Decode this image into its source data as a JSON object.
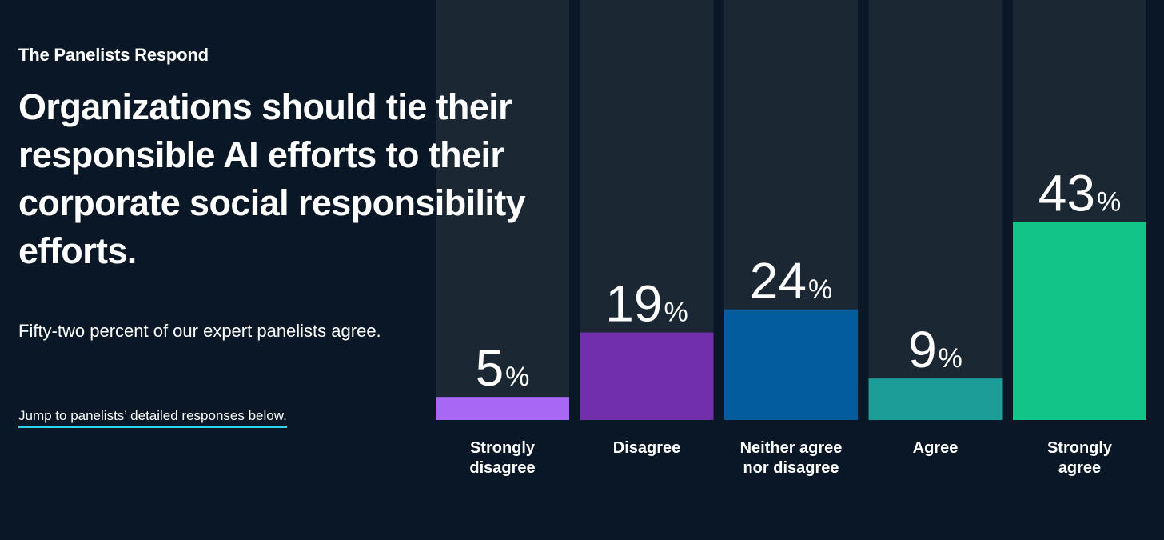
{
  "header": {
    "kicker": "The Panelists Respond",
    "headline": "Organizations should tie their responsible AI efforts to their corporate social responsibility efforts.",
    "summary": "Fifty-two percent of our expert panelists agree.",
    "jump_link": "Jump to panelists’ detailed responses below."
  },
  "colors": {
    "background": "#091726",
    "track": "#1b2733",
    "link_underline": "#2fd4e8"
  },
  "chart_data": {
    "type": "bar",
    "categories": [
      [
        "Strongly",
        "disagree"
      ],
      [
        "Disagree"
      ],
      [
        "Neither agree",
        "nor disagree"
      ],
      [
        "Agree"
      ],
      [
        "Strongly",
        "agree"
      ]
    ],
    "values": [
      5,
      19,
      24,
      9,
      43
    ],
    "value_suffix": "%",
    "colors": [
      "#a968f4",
      "#722fad",
      "#035c9e",
      "#1d9d98",
      "#13c488"
    ],
    "ylim": [
      0,
      100
    ],
    "title": "",
    "xlabel": "",
    "ylabel": ""
  }
}
